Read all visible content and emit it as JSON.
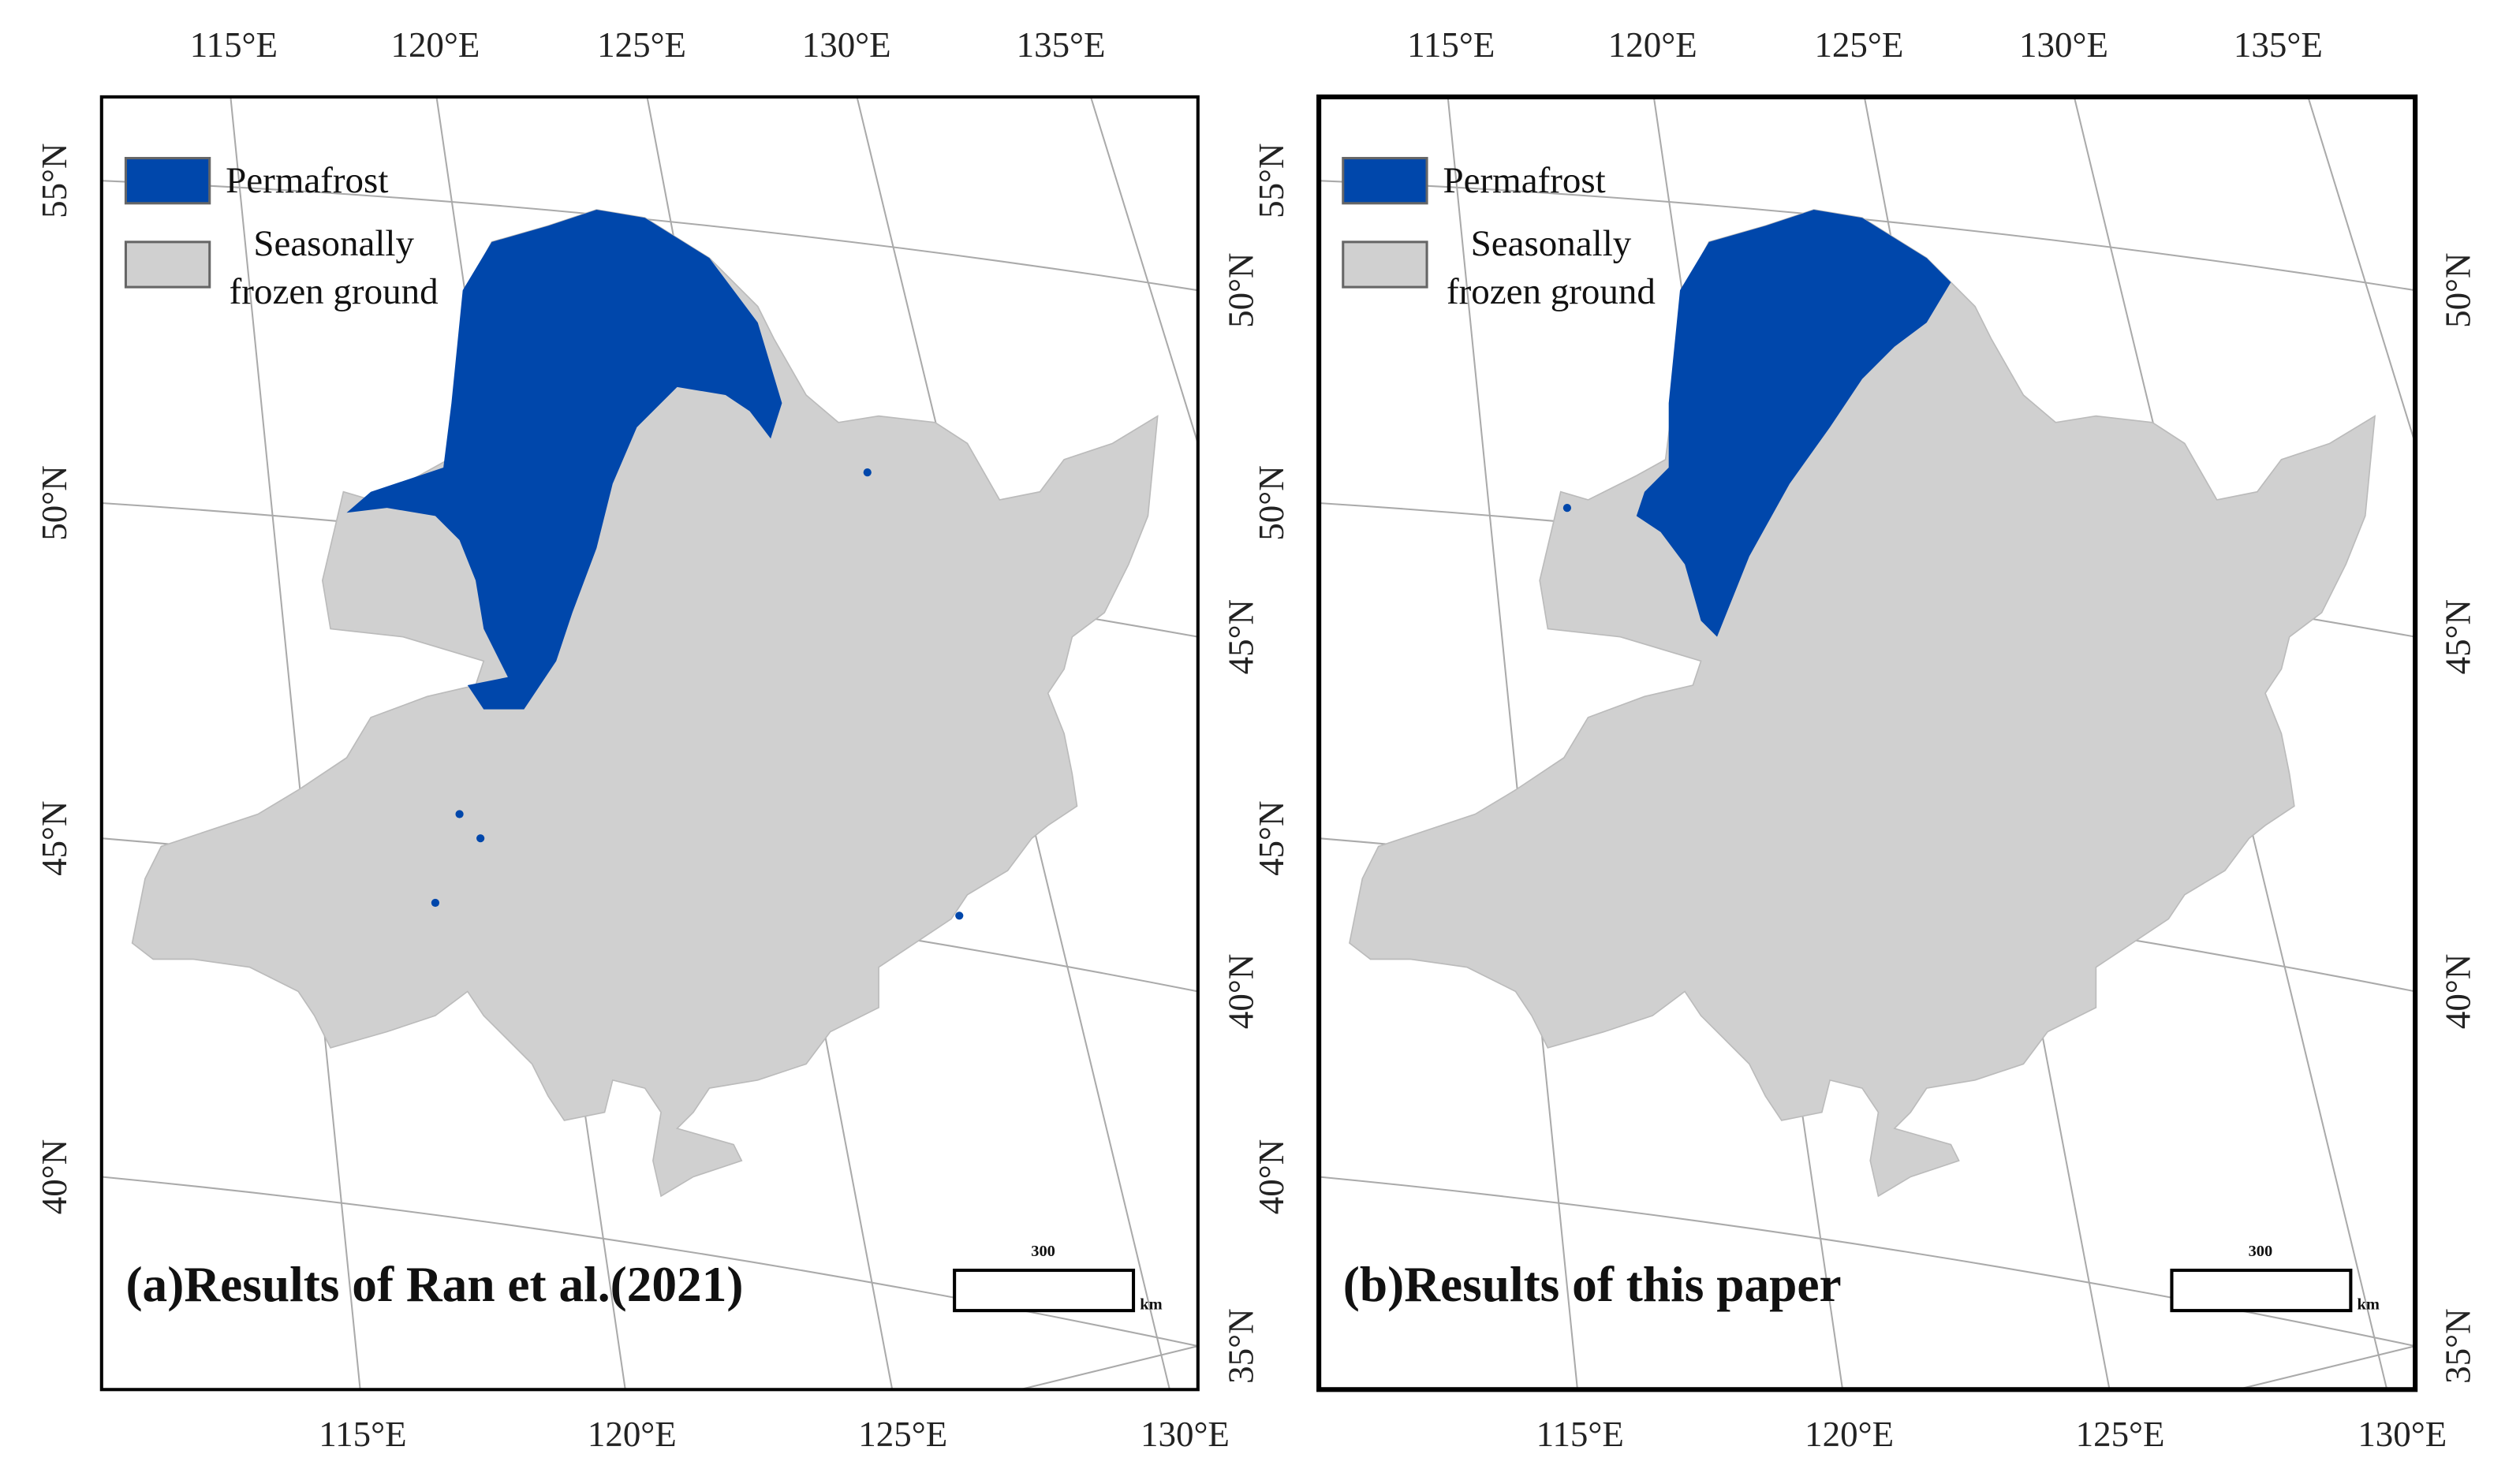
{
  "panels": [
    {
      "caption": "(a)Results of Ran et al.(2021)",
      "top_lon_labels": [
        "115°E",
        "120°E",
        "125°E",
        "130°E",
        "135°E"
      ],
      "bottom_lon_labels": [
        "115°E",
        "120°E",
        "125°E",
        "130°E"
      ],
      "left_lat_labels": [
        "55°N",
        "50°N",
        "45°N",
        "40°N"
      ],
      "right_lat_labels": [
        "50°N",
        "45°N",
        "40°N",
        "35°N"
      ],
      "legend": [
        {
          "label_lines": [
            "Permafrost"
          ]
        },
        {
          "label_lines": [
            "Seasonally",
            "frozen ground"
          ]
        }
      ],
      "scale_bar": {
        "distance": "300",
        "unit": "km"
      }
    },
    {
      "caption": "(b)Results of this paper",
      "top_lon_labels": [
        "115°E",
        "120°E",
        "125°E",
        "130°E",
        "135°E"
      ],
      "bottom_lon_labels": [
        "115°E",
        "120°E",
        "125°E",
        "130°E"
      ],
      "left_lat_labels": [
        "55°N",
        "50°N",
        "45°N",
        "40°N"
      ],
      "right_lat_labels": [
        "50°N",
        "45°N",
        "40°N",
        "35°N"
      ],
      "legend": [
        {
          "label_lines": [
            "Permafrost"
          ]
        },
        {
          "label_lines": [
            "Seasonally",
            "frozen ground"
          ]
        }
      ],
      "scale_bar": {
        "distance": "300",
        "unit": "km"
      }
    }
  ]
}
